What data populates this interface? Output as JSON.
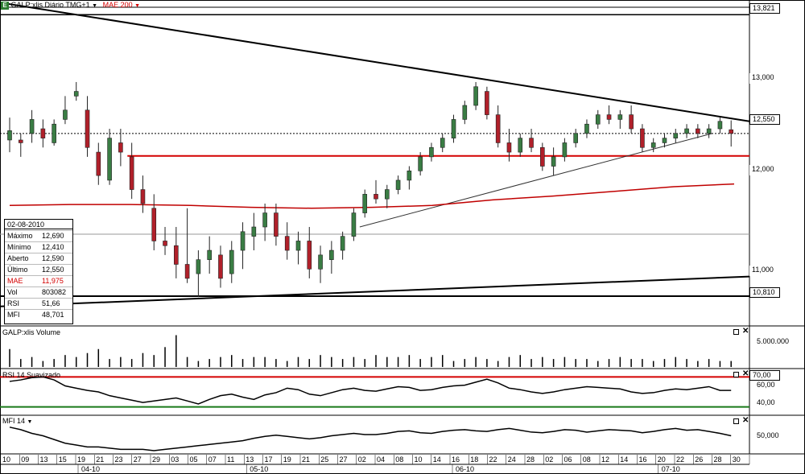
{
  "chart_data": {
    "type": "candlestick",
    "header": {
      "icon": "E",
      "title": "GALP:xlis Diário TMG+1",
      "title_arrow": "▼",
      "ma_label": "MAE 200",
      "ma_arrow": "▼"
    },
    "price_axis": {
      "ticks": [
        "13,821",
        "13,000",
        "12,550",
        "12,000",
        "11,000",
        "10,810"
      ],
      "ylim": [
        10.5,
        13.9
      ]
    },
    "candles": [
      {
        "o": 12.48,
        "h": 12.72,
        "l": 12.35,
        "c": 12.58
      },
      {
        "o": 12.48,
        "h": 12.55,
        "l": 12.3,
        "c": 12.45
      },
      {
        "o": 12.55,
        "h": 12.8,
        "l": 12.45,
        "c": 12.7
      },
      {
        "o": 12.6,
        "h": 12.7,
        "l": 12.4,
        "c": 12.5
      },
      {
        "o": 12.45,
        "h": 12.7,
        "l": 12.42,
        "c": 12.65
      },
      {
        "o": 12.7,
        "h": 12.95,
        "l": 12.65,
        "c": 12.8
      },
      {
        "o": 12.95,
        "h": 13.1,
        "l": 12.9,
        "c": 13.0
      },
      {
        "o": 12.8,
        "h": 12.95,
        "l": 12.3,
        "c": 12.4
      },
      {
        "o": 12.35,
        "h": 12.45,
        "l": 12.0,
        "c": 12.1
      },
      {
        "o": 12.05,
        "h": 12.6,
        "l": 12.0,
        "c": 12.5
      },
      {
        "o": 12.45,
        "h": 12.6,
        "l": 12.2,
        "c": 12.35
      },
      {
        "o": 12.3,
        "h": 12.45,
        "l": 11.85,
        "c": 11.95
      },
      {
        "o": 11.95,
        "h": 12.1,
        "l": 11.7,
        "c": 11.8
      },
      {
        "o": 11.75,
        "h": 11.9,
        "l": 11.3,
        "c": 11.4
      },
      {
        "o": 11.4,
        "h": 11.55,
        "l": 11.25,
        "c": 11.35
      },
      {
        "o": 11.35,
        "h": 11.55,
        "l": 11.0,
        "c": 11.15
      },
      {
        "o": 11.15,
        "h": 11.75,
        "l": 10.95,
        "c": 11.0
      },
      {
        "o": 11.05,
        "h": 11.3,
        "l": 10.8,
        "c": 11.2
      },
      {
        "o": 11.2,
        "h": 11.45,
        "l": 11.05,
        "c": 11.3
      },
      {
        "o": 11.25,
        "h": 11.35,
        "l": 10.9,
        "c": 11.0
      },
      {
        "o": 11.05,
        "h": 11.4,
        "l": 10.95,
        "c": 11.3
      },
      {
        "o": 11.3,
        "h": 11.6,
        "l": 11.1,
        "c": 11.5
      },
      {
        "o": 11.45,
        "h": 11.7,
        "l": 11.3,
        "c": 11.55
      },
      {
        "o": 11.55,
        "h": 11.8,
        "l": 11.4,
        "c": 11.7
      },
      {
        "o": 11.7,
        "h": 11.8,
        "l": 11.35,
        "c": 11.45
      },
      {
        "o": 11.45,
        "h": 11.6,
        "l": 11.2,
        "c": 11.3
      },
      {
        "o": 11.3,
        "h": 11.5,
        "l": 11.15,
        "c": 11.4
      },
      {
        "o": 11.4,
        "h": 11.55,
        "l": 11.0,
        "c": 11.1
      },
      {
        "o": 11.1,
        "h": 11.35,
        "l": 10.95,
        "c": 11.25
      },
      {
        "o": 11.2,
        "h": 11.4,
        "l": 11.05,
        "c": 11.3
      },
      {
        "o": 11.3,
        "h": 11.5,
        "l": 11.2,
        "c": 11.45
      },
      {
        "o": 11.45,
        "h": 11.75,
        "l": 11.4,
        "c": 11.7
      },
      {
        "o": 11.7,
        "h": 11.95,
        "l": 11.65,
        "c": 11.9
      },
      {
        "o": 11.9,
        "h": 12.05,
        "l": 11.8,
        "c": 11.85
      },
      {
        "o": 11.85,
        "h": 12.0,
        "l": 11.75,
        "c": 11.95
      },
      {
        "o": 11.95,
        "h": 12.1,
        "l": 11.9,
        "c": 12.05
      },
      {
        "o": 12.05,
        "h": 12.2,
        "l": 11.95,
        "c": 12.15
      },
      {
        "o": 12.15,
        "h": 12.35,
        "l": 12.1,
        "c": 12.3
      },
      {
        "o": 12.3,
        "h": 12.45,
        "l": 12.25,
        "c": 12.4
      },
      {
        "o": 12.4,
        "h": 12.55,
        "l": 12.35,
        "c": 12.5
      },
      {
        "o": 12.5,
        "h": 12.75,
        "l": 12.45,
        "c": 12.7
      },
      {
        "o": 12.7,
        "h": 12.9,
        "l": 12.65,
        "c": 12.85
      },
      {
        "o": 12.85,
        "h": 13.1,
        "l": 12.8,
        "c": 13.05
      },
      {
        "o": 13.0,
        "h": 13.05,
        "l": 12.7,
        "c": 12.75
      },
      {
        "o": 12.75,
        "h": 12.85,
        "l": 12.4,
        "c": 12.45
      },
      {
        "o": 12.45,
        "h": 12.6,
        "l": 12.25,
        "c": 12.35
      },
      {
        "o": 12.35,
        "h": 12.55,
        "l": 12.3,
        "c": 12.5
      },
      {
        "o": 12.5,
        "h": 12.6,
        "l": 12.35,
        "c": 12.4
      },
      {
        "o": 12.4,
        "h": 12.45,
        "l": 12.15,
        "c": 12.2
      },
      {
        "o": 12.2,
        "h": 12.4,
        "l": 12.1,
        "c": 12.3
      },
      {
        "o": 12.3,
        "h": 12.5,
        "l": 12.25,
        "c": 12.45
      },
      {
        "o": 12.45,
        "h": 12.6,
        "l": 12.4,
        "c": 12.55
      },
      {
        "o": 12.55,
        "h": 12.7,
        "l": 12.5,
        "c": 12.65
      },
      {
        "o": 12.65,
        "h": 12.8,
        "l": 12.6,
        "c": 12.75
      },
      {
        "o": 12.75,
        "h": 12.85,
        "l": 12.65,
        "c": 12.7
      },
      {
        "o": 12.7,
        "h": 12.8,
        "l": 12.6,
        "c": 12.75
      },
      {
        "o": 12.75,
        "h": 12.85,
        "l": 12.55,
        "c": 12.6
      },
      {
        "o": 12.6,
        "h": 12.65,
        "l": 12.35,
        "c": 12.4
      },
      {
        "o": 12.4,
        "h": 12.5,
        "l": 12.35,
        "c": 12.45
      },
      {
        "o": 12.45,
        "h": 12.55,
        "l": 12.4,
        "c": 12.5
      },
      {
        "o": 12.5,
        "h": 12.6,
        "l": 12.45,
        "c": 12.55
      },
      {
        "o": 12.55,
        "h": 12.65,
        "l": 12.5,
        "c": 12.6
      },
      {
        "o": 12.6,
        "h": 12.65,
        "l": 12.5,
        "c": 12.55
      },
      {
        "o": 12.55,
        "h": 12.65,
        "l": 12.5,
        "c": 12.6
      },
      {
        "o": 12.6,
        "h": 12.72,
        "l": 12.55,
        "c": 12.68
      },
      {
        "o": 12.59,
        "h": 12.69,
        "l": 12.41,
        "c": 12.55
      }
    ],
    "ma_200": [
      11.78,
      11.79,
      11.79,
      11.78,
      11.76,
      11.75,
      11.76,
      11.78,
      11.84,
      11.88,
      11.93,
      11.98,
      12.01
    ],
    "drawn_lines": [
      {
        "name": "downtrend-resistance",
        "color": "#000000",
        "from": [
          0,
          13.95
        ],
        "to": [
          1,
          12.68
        ]
      },
      {
        "name": "uptrend-support-lower",
        "color": "#000000",
        "from": [
          0,
          10.7
        ],
        "to": [
          1,
          11.02
        ]
      },
      {
        "name": "support-10810",
        "color": "#000000",
        "from": [
          0,
          10.81
        ],
        "to": [
          1,
          10.81
        ]
      },
      {
        "name": "resistance-13821",
        "color": "#000000",
        "from": [
          0,
          13.82
        ],
        "to": [
          1,
          13.82
        ]
      },
      {
        "name": "red-horizontal-12280",
        "color": "#d40000",
        "from": [
          0.17,
          12.31
        ],
        "to": [
          1,
          12.31
        ]
      },
      {
        "name": "thin-uptrend",
        "color": "#333333",
        "from": [
          0.48,
          11.55
        ],
        "to": [
          0.95,
          12.55
        ]
      },
      {
        "name": "last-price-dotted",
        "color": "#000000",
        "from": [
          0,
          12.55
        ],
        "to": [
          1,
          12.55
        ]
      }
    ],
    "info_box": {
      "date": "02-08-2010",
      "rows": [
        {
          "label": "Máximo",
          "value": "12,690",
          "color": "#000000"
        },
        {
          "label": "Mínimo",
          "value": "12,410",
          "color": "#000000"
        },
        {
          "label": "Aberto",
          "value": "12,590",
          "color": "#000000"
        },
        {
          "label": "Último",
          "value": "12,550",
          "color": "#000000"
        },
        {
          "label": "MAE",
          "value": "11,975",
          "color": "#d40000"
        },
        {
          "label": "Vol",
          "value": "803082",
          "color": "#000000"
        },
        {
          "label": "RSI",
          "value": "51,66",
          "color": "#000000"
        },
        {
          "label": "MFI",
          "value": "48,701",
          "color": "#000000"
        }
      ]
    },
    "volume": {
      "title": "GALP:xlis Volume",
      "axis_tick": "5.000.000",
      "values": [
        0.9,
        0.4,
        0.5,
        0.3,
        0.4,
        0.6,
        0.5,
        0.7,
        0.9,
        0.4,
        0.5,
        0.4,
        0.7,
        0.6,
        1.0,
        1.6,
        0.5,
        0.3,
        0.4,
        0.5,
        0.6,
        0.4,
        0.5,
        0.5,
        0.4,
        0.3,
        0.5,
        0.4,
        0.6,
        0.5,
        0.4,
        0.5,
        0.4,
        0.6,
        0.5,
        0.5,
        0.6,
        0.4,
        0.5,
        0.6,
        0.3,
        0.4,
        0.5,
        0.4,
        0.3,
        0.5,
        0.6,
        0.4,
        0.5,
        0.4,
        0.5,
        0.4,
        0.4,
        0.3,
        0.4,
        0.5,
        0.4,
        0.4,
        0.3,
        0.4,
        0.5,
        0.4,
        0.3,
        0.4,
        0.3,
        0.3
      ]
    },
    "rsi": {
      "title": "RSI 14 Suavizado",
      "ticks": [
        "70,00",
        "60,00",
        "40,00"
      ],
      "ylim": [
        20,
        80
      ],
      "upper_band": 70,
      "lower_band": 30,
      "values": [
        64,
        66,
        69,
        70,
        66,
        58,
        55,
        52,
        50,
        45,
        42,
        39,
        36,
        38,
        40,
        42,
        38,
        34,
        40,
        45,
        47,
        43,
        40,
        46,
        49,
        55,
        53,
        47,
        45,
        49,
        53,
        55,
        52,
        51,
        54,
        57,
        56,
        52,
        53,
        56,
        58,
        59,
        63,
        67,
        62,
        55,
        53,
        50,
        48,
        50,
        53,
        55,
        57,
        56,
        55,
        54,
        50,
        48,
        49,
        52,
        54,
        53,
        55,
        57,
        52,
        52
      ]
    },
    "mfi": {
      "title": "MFI 14",
      "ticks": [
        "50,000"
      ],
      "ylim": [
        20,
        80
      ],
      "values": [
        62,
        58,
        52,
        48,
        42,
        36,
        33,
        30,
        30,
        28,
        26,
        26,
        26,
        24,
        26,
        28,
        30,
        32,
        34,
        36,
        38,
        40,
        44,
        47,
        49,
        47,
        45,
        43,
        45,
        48,
        50,
        52,
        50,
        50,
        52,
        55,
        56,
        53,
        52,
        55,
        57,
        58,
        56,
        55,
        58,
        60,
        57,
        54,
        53,
        55,
        58,
        57,
        54,
        56,
        58,
        57,
        56,
        53,
        55,
        58,
        60,
        57,
        58,
        55,
        52,
        48
      ]
    },
    "x_axis": {
      "day_labels": [
        "10",
        "09",
        "13",
        "15",
        "19",
        "21",
        "23",
        "27",
        "29",
        "03",
        "05",
        "07",
        "11",
        "13",
        "17",
        "19",
        "21",
        "25",
        "27",
        "02",
        "04",
        "08",
        "10",
        "14",
        "16",
        "18",
        "22",
        "24",
        "28",
        "02",
        "06",
        "08",
        "12",
        "14",
        "16",
        "20",
        "22",
        "26",
        "28",
        "30"
      ],
      "month_labels": [
        {
          "label": "04-10",
          "index": 4
        },
        {
          "label": "05-10",
          "index": 13
        },
        {
          "label": "06-10",
          "index": 24
        },
        {
          "label": "07-10",
          "index": 35
        }
      ]
    },
    "colors": {
      "up": "#3a7d44",
      "down": "#b0202a",
      "ma": "#c00000",
      "red_line": "#d40000",
      "band_green": "#1a7a1a",
      "band_red": "#d40000"
    }
  }
}
